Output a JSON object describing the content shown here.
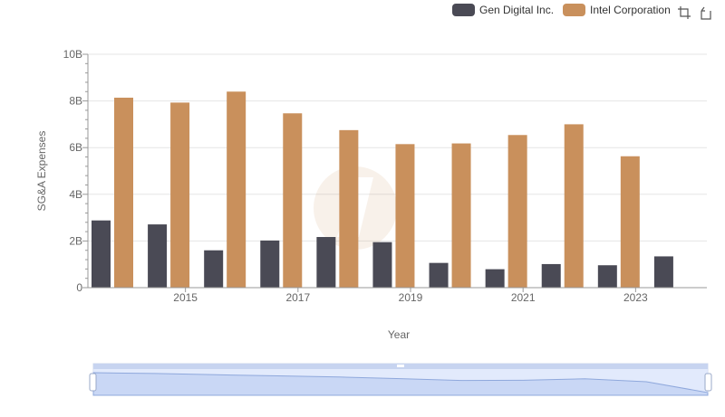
{
  "legend": {
    "series_a": "Gen Digital Inc.",
    "series_b": "Intel Corporation"
  },
  "toolbox": {
    "zoom_icon": "crop-zoom-icon",
    "restore_icon": "restore-icon"
  },
  "chart_data": {
    "type": "bar",
    "xlabel": "Year",
    "ylabel": "SG&A Expenses",
    "x": [
      2014,
      2015,
      2016,
      2017,
      2018,
      2019,
      2020,
      2021,
      2022,
      2023,
      2024
    ],
    "x_tick_labels": [
      "2015",
      "2017",
      "2019",
      "2021",
      "2023"
    ],
    "y_tick_labels": [
      "0",
      "2B",
      "4B",
      "6B",
      "8B",
      "10B"
    ],
    "ylim": [
      0,
      10000000000
    ],
    "grid": true,
    "legend_position": "top-right",
    "series": [
      {
        "name": "Gen Digital Inc.",
        "color": "#4a4a55",
        "values": [
          2880000000,
          2710000000,
          1600000000,
          2020000000,
          2170000000,
          1950000000,
          1060000000,
          790000000,
          1010000000,
          960000000,
          1340000000
        ]
      },
      {
        "name": "Intel Corporation",
        "color": "#c9905c",
        "values": [
          8140000000,
          7930000000,
          8400000000,
          7470000000,
          6750000000,
          6150000000,
          6180000000,
          6540000000,
          7000000000,
          5630000000,
          null
        ]
      }
    ]
  }
}
